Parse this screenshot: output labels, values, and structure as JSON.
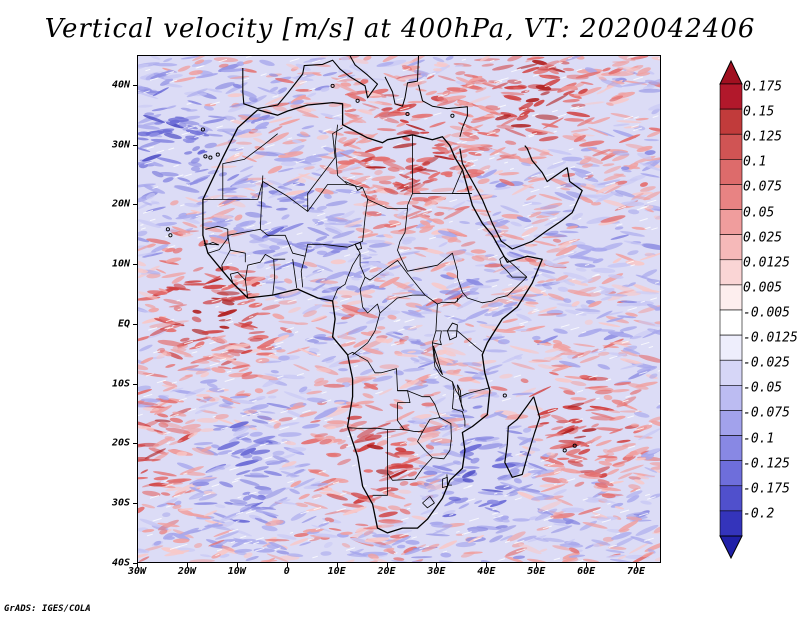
{
  "title": "Vertical velocity [m/s] at 400hPa, VT: 2020042406",
  "credit": "GrADS: IGES/COLA",
  "map": {
    "lon_range": [
      -30,
      75
    ],
    "lat_range": [
      -40,
      45
    ],
    "lat_ticks": [
      {
        "value": 40,
        "label": "40N"
      },
      {
        "value": 30,
        "label": "30N"
      },
      {
        "value": 20,
        "label": "20N"
      },
      {
        "value": 10,
        "label": "10N"
      },
      {
        "value": 0,
        "label": "EQ"
      },
      {
        "value": -10,
        "label": "10S"
      },
      {
        "value": -20,
        "label": "20S"
      },
      {
        "value": -30,
        "label": "30S"
      },
      {
        "value": -40,
        "label": "40S"
      }
    ],
    "lon_ticks": [
      {
        "value": -30,
        "label": "30W"
      },
      {
        "value": -20,
        "label": "20W"
      },
      {
        "value": -10,
        "label": "10W"
      },
      {
        "value": 0,
        "label": "0"
      },
      {
        "value": 10,
        "label": "10E"
      },
      {
        "value": 20,
        "label": "20E"
      },
      {
        "value": 30,
        "label": "30E"
      },
      {
        "value": 40,
        "label": "40E"
      },
      {
        "value": 50,
        "label": "50E"
      },
      {
        "value": 60,
        "label": "60E"
      },
      {
        "value": 70,
        "label": "70E"
      }
    ],
    "field_regions": [
      {
        "name": "sahara-ascent",
        "lon": 25,
        "lat": 30,
        "kind": "up",
        "strength": 0.9
      },
      {
        "name": "arabia-ascent",
        "lon": 50,
        "lat": 38,
        "kind": "up",
        "strength": 0.9
      },
      {
        "name": "gulf-guinea-ascent",
        "lon": -15,
        "lat": 3,
        "kind": "up",
        "strength": 1.0
      },
      {
        "name": "madagascar-east-ascent",
        "lon": 57,
        "lat": -17,
        "kind": "up",
        "strength": 0.8
      },
      {
        "name": "namibia-ascent",
        "lon": 17,
        "lat": -23,
        "kind": "up",
        "strength": 0.8
      },
      {
        "name": "atlantic-sw-ascent",
        "lon": -27,
        "lat": -22,
        "kind": "up",
        "strength": 0.7
      },
      {
        "name": "atlantic-ne-descent",
        "lon": -25,
        "lat": 30,
        "kind": "down",
        "strength": 0.8
      },
      {
        "name": "mozambique-descent",
        "lon": 40,
        "lat": -25,
        "kind": "down",
        "strength": 0.8
      },
      {
        "name": "south-atlantic-descent",
        "lon": -10,
        "lat": -25,
        "kind": "down",
        "strength": 0.6
      },
      {
        "name": "west-africa-descent",
        "lon": 0,
        "lat": 15,
        "kind": "down",
        "strength": 0.5
      }
    ]
  },
  "colorbar": {
    "levels": [
      {
        "label": "0.175",
        "color": "#b2182b"
      },
      {
        "label": "0.15",
        "color": "#c13b3b"
      },
      {
        "label": "0.125",
        "color": "#d05454"
      },
      {
        "label": "0.1",
        "color": "#dd6b6b"
      },
      {
        "label": "0.075",
        "color": "#e88383"
      },
      {
        "label": "0.05",
        "color": "#f09d9d"
      },
      {
        "label": "0.025",
        "color": "#f6b9b9"
      },
      {
        "label": "0.0125",
        "color": "#fad5d5"
      },
      {
        "label": "0.005",
        "color": "#fdeeee"
      },
      {
        "label": "-0.005",
        "color": "#ffffff"
      },
      {
        "label": "-0.0125",
        "color": "#eeeefc"
      },
      {
        "label": "-0.025",
        "color": "#d6d6f7"
      },
      {
        "label": "-0.05",
        "color": "#bcbcf2"
      },
      {
        "label": "-0.075",
        "color": "#a2a2ec"
      },
      {
        "label": "-0.1",
        "color": "#8888e4"
      },
      {
        "label": "-0.125",
        "color": "#6e6edb"
      },
      {
        "label": "-0.175",
        "color": "#5050cc"
      },
      {
        "label": "-0.2",
        "color": "#3434bb"
      }
    ],
    "top_cap_color": "#a01020",
    "bottom_cap_color": "#2020a8"
  },
  "colors": {
    "land_outline": "#000000",
    "up": "#e04848",
    "down": "#5a5ad8"
  }
}
